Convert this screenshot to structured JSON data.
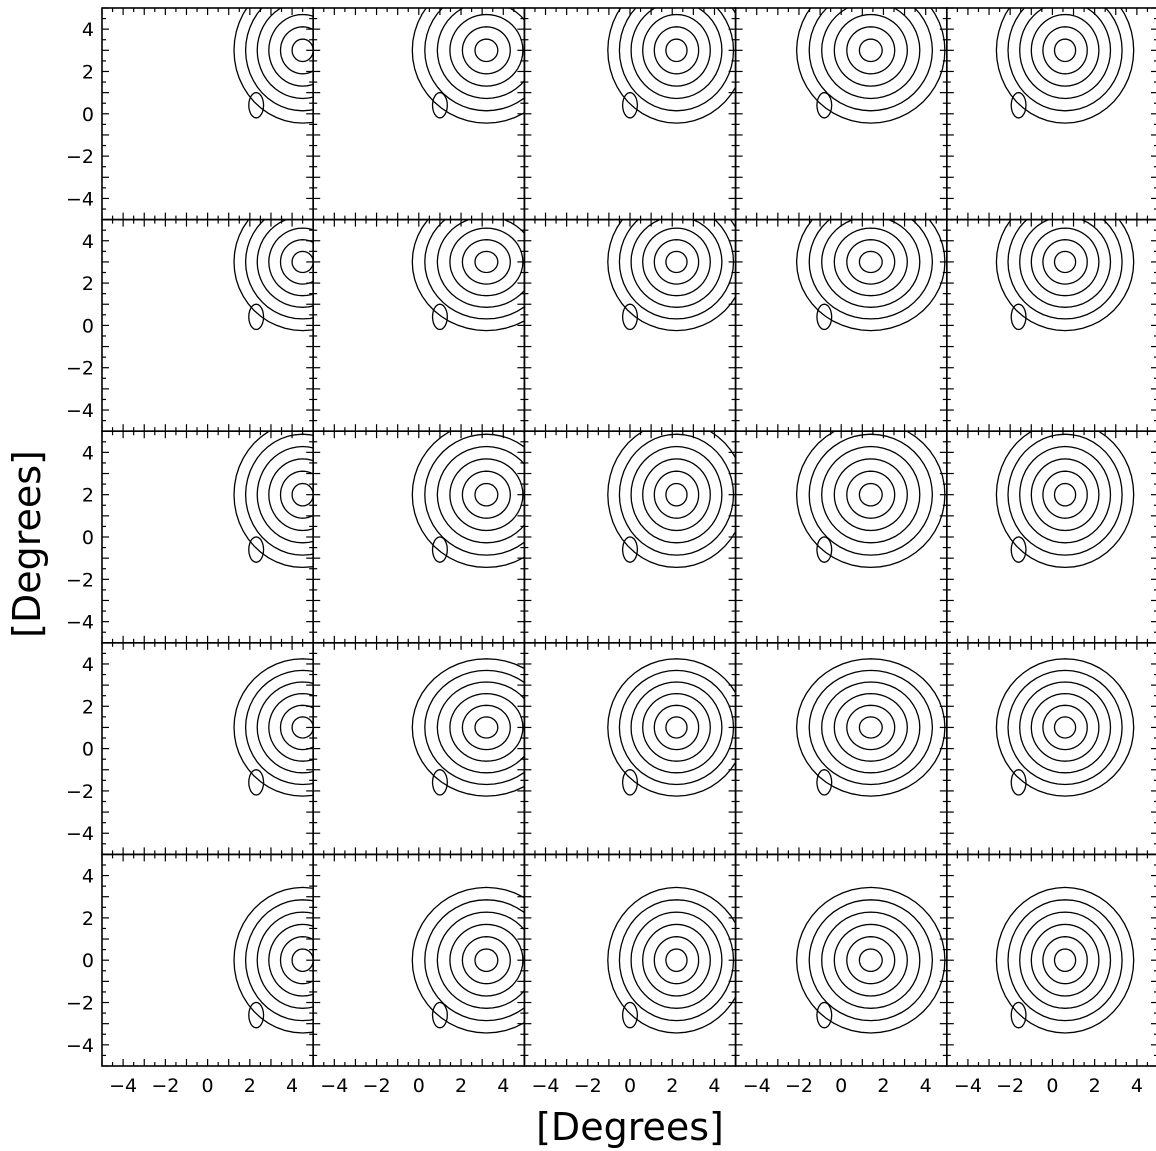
{
  "chart_data": {
    "type": "contour",
    "layout": {
      "rows": 5,
      "cols": 5
    },
    "xlabel": "[Degrees]",
    "ylabel": "[Degrees]",
    "xlim": [
      -5,
      5
    ],
    "ylim": [
      -5,
      5
    ],
    "x_ticks": [
      -4,
      -2,
      0,
      2,
      4
    ],
    "y_ticks": [
      -4,
      -2,
      0,
      2,
      4
    ],
    "x_tick_labels": [
      "−4",
      "−2",
      "0",
      "2",
      "4"
    ],
    "y_tick_labels": [
      "−4",
      "−2",
      "0",
      "2",
      "4"
    ],
    "grid": false,
    "row_centers_y": [
      3,
      3,
      2,
      1,
      0
    ],
    "col_centers_x": [
      4.5,
      3.2,
      2.2,
      1.4,
      0.6
    ],
    "contour_levels_per_panel": 6
  }
}
